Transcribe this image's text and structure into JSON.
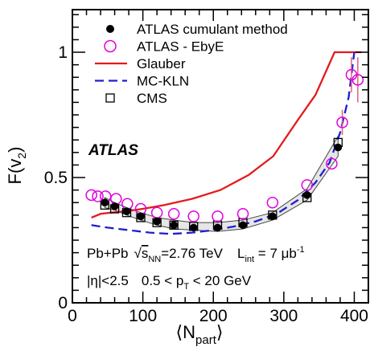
{
  "chart_data": {
    "type": "scatter",
    "title": "",
    "xlabel": "⟨N",
    "xlabel_sub": "part",
    "xlabel_close": "⟩",
    "ylabel": "F(v",
    "ylabel_sub": "2",
    "ylabel_close": ")",
    "xlim": [
      0,
      420
    ],
    "ylim": [
      0,
      1.17
    ],
    "xticks": [
      0,
      100,
      200,
      300,
      400
    ],
    "xtick_labels": [
      "0",
      "100",
      "200",
      "300",
      "400"
    ],
    "yticks": [
      0,
      0.5,
      1
    ],
    "ytick_labels": [
      "0",
      "0.5",
      "1"
    ],
    "grid": false,
    "legend_position": "top-left",
    "atlas_label": "ATLAS",
    "info_line1": {
      "system": "Pb+Pb",
      "sqrt": "√",
      "s": "s",
      "nn": "NN",
      "energy": "=2.76 TeV",
      "lumi_L": "L",
      "lumi_sub": "int",
      "lumi_val": " = 7 μb",
      "lumi_sup": "-1"
    },
    "info_line2": {
      "eta": "|η|<2.5",
      "pt_pre": "0.5 < p",
      "pt_sub": "T",
      "pt_post": " < 20 GeV"
    },
    "series": [
      {
        "name": "ATLAS cumulant method",
        "style": "filled-circle",
        "color": "#000000",
        "x": [
          46,
          60,
          77,
          97,
          120,
          144,
          172,
          206,
          242,
          284,
          333,
          377
        ],
        "y": [
          0.4,
          0.385,
          0.365,
          0.345,
          0.325,
          0.31,
          0.3,
          0.3,
          0.31,
          0.345,
          0.43,
          0.62
        ],
        "band_upper": [
          0.42,
          0.4,
          0.38,
          0.36,
          0.34,
          0.33,
          0.32,
          0.32,
          0.33,
          0.36,
          0.455,
          0.665
        ],
        "band_lower": [
          0.38,
          0.37,
          0.35,
          0.33,
          0.31,
          0.295,
          0.29,
          0.285,
          0.295,
          0.33,
          0.41,
          0.585
        ]
      },
      {
        "name": "ATLAS - EbyE",
        "style": "open-circle",
        "color": "#e000e0",
        "x": [
          27,
          36,
          47,
          62,
          78,
          97,
          120,
          144,
          172,
          206,
          242,
          284,
          333,
          368,
          383,
          396,
          405
        ],
        "y": [
          0.43,
          0.425,
          0.425,
          0.415,
          0.395,
          0.375,
          0.36,
          0.355,
          0.345,
          0.345,
          0.355,
          0.4,
          0.47,
          0.555,
          0.72,
          0.91,
          0.89
        ],
        "err_x": [
          383,
          396,
          405
        ],
        "err_lo": [
          0.67,
          0.84,
          0.8
        ],
        "err_hi": [
          0.77,
          0.98,
          0.98
        ]
      },
      {
        "name": "Glauber",
        "style": "solid-line",
        "color": "#e31a1c",
        "x": [
          27,
          40,
          55,
          75,
          100,
          130,
          170,
          210,
          250,
          285,
          320,
          345,
          372,
          385,
          400,
          410
        ],
        "y": [
          0.34,
          0.355,
          0.36,
          0.365,
          0.375,
          0.39,
          0.415,
          0.45,
          0.51,
          0.585,
          0.73,
          0.83,
          1.0,
          1.0,
          1.0,
          1.0
        ]
      },
      {
        "name": "MC-KLN",
        "style": "dashed-line",
        "color": "#1f1fd0",
        "x": [
          27,
          50,
          80,
          110,
          140,
          170,
          200,
          230,
          260,
          290,
          320,
          345,
          365,
          380,
          392,
          400
        ],
        "y": [
          0.31,
          0.3,
          0.29,
          0.28,
          0.275,
          0.28,
          0.29,
          0.305,
          0.325,
          0.355,
          0.41,
          0.48,
          0.56,
          0.68,
          0.82,
          1.0
        ]
      },
      {
        "name": "CMS",
        "style": "open-square",
        "color": "#000000",
        "x": [
          46,
          60,
          77,
          97,
          120,
          144,
          172,
          206,
          242,
          284,
          333,
          377
        ],
        "y": [
          0.39,
          0.375,
          0.36,
          0.34,
          0.32,
          0.31,
          0.305,
          0.31,
          0.32,
          0.35,
          0.42,
          0.64
        ]
      }
    ]
  }
}
